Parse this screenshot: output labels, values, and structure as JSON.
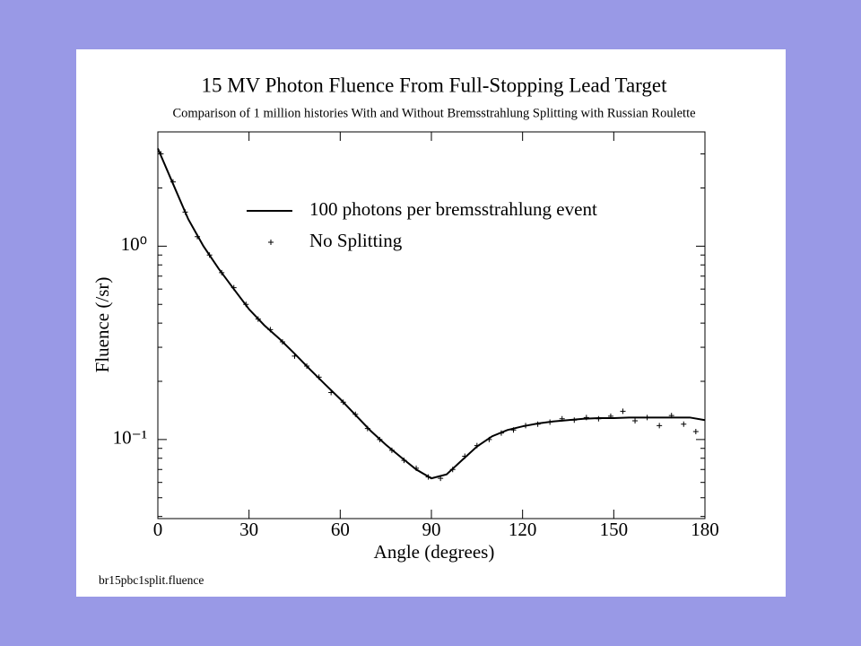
{
  "chart_data": {
    "type": "line",
    "title": "15 MV Photon Fluence From Full-Stopping Lead Target",
    "subtitle": "Comparison of 1 million histories With and Without Bremsstrahlung Splitting with Russian Roulette",
    "x_label": "Angle (degrees)",
    "y_label": "Fluence (/sr)",
    "footer": "br15pbc1split.fluence",
    "xlim": [
      0,
      180
    ],
    "xticks": [
      0,
      30,
      60,
      90,
      120,
      150,
      180
    ],
    "ylim": [
      0.039,
      3.9
    ],
    "yticks": [
      {
        "value": 0.1,
        "label": "10⁻¹"
      },
      {
        "value": 1,
        "label": "10⁰"
      }
    ],
    "log_y": true,
    "grid": false,
    "legend_position": "upper-center",
    "series": [
      {
        "name": "100 photons per bremsstrahlung event",
        "color": "#000000",
        "style": "line",
        "x": [
          0,
          5,
          10,
          15,
          20,
          25,
          30,
          35,
          40,
          45,
          50,
          55,
          60,
          65,
          70,
          75,
          80,
          85,
          90,
          95,
          100,
          105,
          110,
          115,
          120,
          125,
          130,
          135,
          140,
          145,
          150,
          155,
          160,
          165,
          170,
          175,
          180
        ],
        "values": [
          3.2,
          2.1,
          1.38,
          1.0,
          0.765,
          0.6,
          0.472,
          0.39,
          0.332,
          0.278,
          0.231,
          0.193,
          0.162,
          0.134,
          0.111,
          0.094,
          0.081,
          0.07,
          0.063,
          0.066,
          0.078,
          0.092,
          0.104,
          0.112,
          0.117,
          0.121,
          0.124,
          0.126,
          0.128,
          0.129,
          0.129,
          0.13,
          0.13,
          0.13,
          0.13,
          0.13,
          0.126
        ]
      },
      {
        "name": "No Splitting",
        "color": "#000000",
        "style": "plus",
        "x": [
          1,
          5,
          9,
          13,
          17,
          21,
          25,
          29,
          33,
          37,
          41,
          45,
          49,
          53,
          57,
          61,
          65,
          69,
          73,
          77,
          81,
          85,
          89,
          93,
          97,
          101,
          105,
          109,
          113,
          117,
          121,
          125,
          129,
          133,
          137,
          141,
          145,
          149,
          153,
          157,
          161,
          165,
          169,
          173,
          177
        ],
        "values": [
          3.0,
          2.15,
          1.5,
          1.12,
          0.9,
          0.73,
          0.61,
          0.5,
          0.42,
          0.37,
          0.32,
          0.27,
          0.24,
          0.21,
          0.175,
          0.156,
          0.135,
          0.114,
          0.1,
          0.088,
          0.078,
          0.071,
          0.064,
          0.063,
          0.07,
          0.082,
          0.093,
          0.1,
          0.108,
          0.112,
          0.118,
          0.12,
          0.123,
          0.128,
          0.126,
          0.13,
          0.128,
          0.132,
          0.14,
          0.125,
          0.13,
          0.118,
          0.133,
          0.12,
          0.11
        ]
      }
    ]
  }
}
